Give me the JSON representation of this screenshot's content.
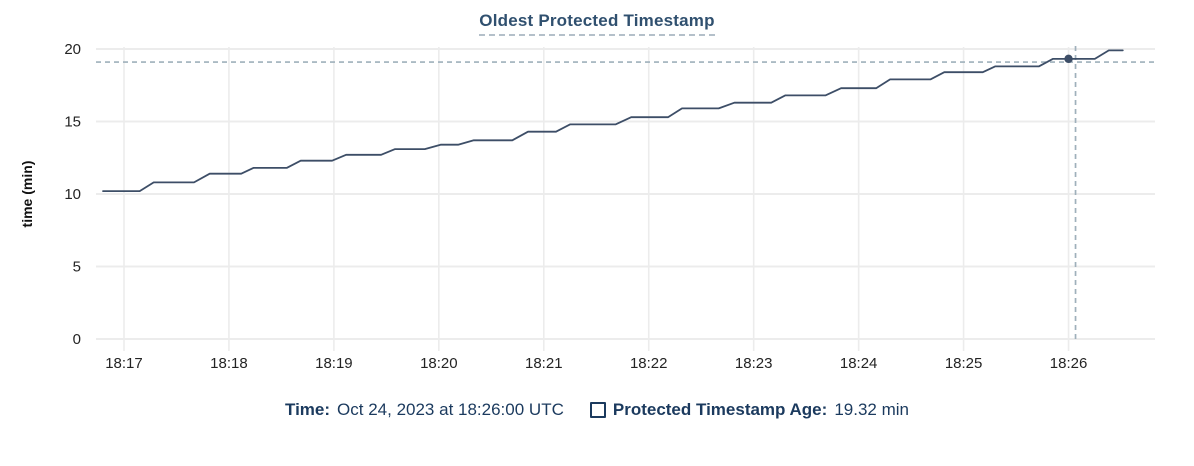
{
  "title": "Oldest Protected Timestamp",
  "colors": {
    "title_blue": "#30506f",
    "legend_navy": "#1b3a5e",
    "line": "#3d4e67",
    "crosshair": "#9fb0bb",
    "gridline": "#ececec",
    "axis_text": "#242424"
  },
  "legend": {
    "time_label": "Time:",
    "time_value": "Oct 24, 2023 at 18:26:00 UTC",
    "series_label": "Protected Timestamp Age:",
    "series_value": "19.32 min"
  },
  "chart_data": {
    "type": "line",
    "title": "Oldest Protected Timestamp",
    "xlabel": "",
    "ylabel": "time (min)",
    "ylim": [
      0,
      20
    ],
    "y_ticks": [
      0,
      5,
      10,
      15,
      20
    ],
    "x_domain_sec": [
      -16,
      590
    ],
    "x_ticks": [
      {
        "sec": 0,
        "label": "18:17"
      },
      {
        "sec": 60,
        "label": "18:18"
      },
      {
        "sec": 120,
        "label": "18:19"
      },
      {
        "sec": 180,
        "label": "18:20"
      },
      {
        "sec": 240,
        "label": "18:21"
      },
      {
        "sec": 300,
        "label": "18:22"
      },
      {
        "sec": 360,
        "label": "18:23"
      },
      {
        "sec": 420,
        "label": "18:24"
      },
      {
        "sec": 480,
        "label": "18:25"
      },
      {
        "sec": 540,
        "label": "18:26"
      }
    ],
    "grid": true,
    "legend_position": "bottom",
    "series": [
      {
        "name": "Protected Timestamp Age",
        "unit": "min",
        "points": [
          [
            -12,
            10.2
          ],
          [
            9,
            10.2
          ],
          [
            17,
            10.8
          ],
          [
            40,
            10.8
          ],
          [
            49,
            11.4
          ],
          [
            67,
            11.4
          ],
          [
            74,
            11.8
          ],
          [
            93,
            11.8
          ],
          [
            101,
            12.3
          ],
          [
            119,
            12.3
          ],
          [
            127,
            12.7
          ],
          [
            147,
            12.7
          ],
          [
            155,
            13.1
          ],
          [
            172,
            13.1
          ],
          [
            181,
            13.4
          ],
          [
            191,
            13.4
          ],
          [
            200,
            13.7
          ],
          [
            222,
            13.7
          ],
          [
            231,
            14.3
          ],
          [
            247,
            14.3
          ],
          [
            255,
            14.8
          ],
          [
            281,
            14.8
          ],
          [
            290,
            15.3
          ],
          [
            311,
            15.3
          ],
          [
            319,
            15.9
          ],
          [
            340,
            15.9
          ],
          [
            349,
            16.3
          ],
          [
            370,
            16.3
          ],
          [
            378,
            16.8
          ],
          [
            401,
            16.8
          ],
          [
            410,
            17.3
          ],
          [
            430,
            17.3
          ],
          [
            438,
            17.9
          ],
          [
            461,
            17.9
          ],
          [
            469,
            18.4
          ],
          [
            491,
            18.4
          ],
          [
            498,
            18.8
          ],
          [
            523,
            18.8
          ],
          [
            531,
            19.32
          ],
          [
            555,
            19.32
          ],
          [
            563,
            19.9
          ],
          [
            571,
            19.9
          ]
        ]
      }
    ],
    "hover_point": {
      "sec": 540,
      "value": 19.32,
      "time_label": "18:26:00",
      "value_label": "19.32 min"
    },
    "crosshair": {
      "sec": 544,
      "value": 19.1
    }
  }
}
